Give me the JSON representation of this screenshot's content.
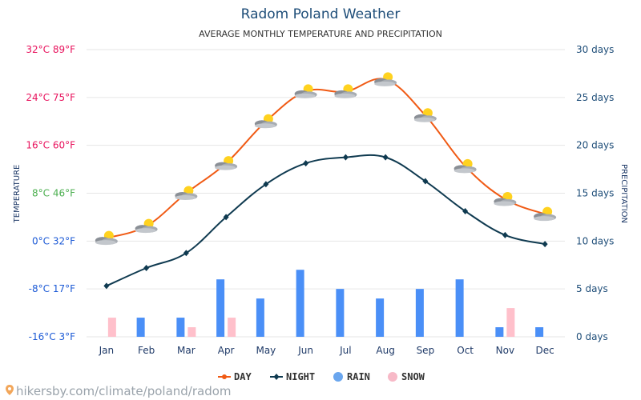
{
  "header": {
    "title": "Radom Poland Weather",
    "subtitle": "AVERAGE MONTHLY TEMPERATURE AND PRECIPITATION"
  },
  "left_axis": {
    "label": "TEMPERATURE",
    "ticks": [
      {
        "label": "32°C 89°F",
        "value": 32,
        "color": "#e8135d"
      },
      {
        "label": "24°C 75°F",
        "value": 24,
        "color": "#e8135d"
      },
      {
        "label": "16°C 60°F",
        "value": 16,
        "color": "#e8135d"
      },
      {
        "label": "8°C 46°F",
        "value": 8,
        "color": "#4caf50"
      },
      {
        "label": "0°C 32°F",
        "value": 0,
        "color": "#1e5bd6"
      },
      {
        "label": "-8°C 17°F",
        "value": -8,
        "color": "#1e5bd6"
      },
      {
        "label": "-16°C 3°F",
        "value": -16,
        "color": "#1e5bd6"
      }
    ]
  },
  "right_axis": {
    "label": "PRECIPITATION",
    "ticks": [
      {
        "label": "30 days",
        "value": 30
      },
      {
        "label": "25 days",
        "value": 25
      },
      {
        "label": "20 days",
        "value": 20
      },
      {
        "label": "15 days",
        "value": 15
      },
      {
        "label": "10 days",
        "value": 10
      },
      {
        "label": "5 days",
        "value": 5
      },
      {
        "label": "0 days",
        "value": 0
      }
    ]
  },
  "legend": [
    {
      "label": "DAY",
      "kind": "line",
      "color": "#f05a14"
    },
    {
      "label": "NIGHT",
      "kind": "line",
      "color": "#0f3a50"
    },
    {
      "label": "RAIN",
      "kind": "dot",
      "color": "#6aa6ee"
    },
    {
      "label": "SNOW",
      "kind": "dot",
      "color": "#f7b9c7"
    }
  ],
  "footer": {
    "source": "hikersby.com/climate/poland/radom"
  },
  "colors": {
    "day": "#f05a14",
    "night": "#0f3a50",
    "rain": "#4a8ff7",
    "snow": "#ffc0cb",
    "grid": "#e6e6e6",
    "right_ticks": "#1f4e79"
  },
  "chart_data": {
    "type": "line",
    "title": "Radom Poland Weather",
    "subtitle": "AVERAGE MONTHLY TEMPERATURE AND PRECIPITATION",
    "categories": [
      "Jan",
      "Feb",
      "Mar",
      "Apr",
      "May",
      "Jun",
      "Jul",
      "Aug",
      "Sep",
      "Oct",
      "Nov",
      "Dec"
    ],
    "series": [
      {
        "name": "DAY",
        "axis": "left",
        "unit": "°C",
        "values": [
          0.5,
          2.5,
          8,
          13,
          20,
          25,
          25,
          27,
          21,
          12.5,
          7,
          4.5
        ]
      },
      {
        "name": "NIGHT",
        "axis": "left",
        "unit": "°C",
        "values": [
          -7.5,
          -4.5,
          -2,
          4,
          9.5,
          13,
          14,
          14,
          10,
          5,
          1,
          -0.5
        ]
      },
      {
        "name": "RAIN",
        "axis": "right",
        "type": "bar",
        "unit": "days",
        "values": [
          0,
          2,
          2,
          6,
          4,
          7,
          5,
          4,
          5,
          6,
          1,
          1
        ]
      },
      {
        "name": "SNOW",
        "axis": "right",
        "type": "bar",
        "unit": "days",
        "values": [
          2,
          0,
          1,
          2,
          0,
          0,
          0,
          0,
          0,
          0,
          3,
          0
        ]
      }
    ],
    "ylabel_left": "TEMPERATURE",
    "ylabel_right": "PRECIPITATION",
    "ylim_left": [
      -16,
      32
    ],
    "ylim_right": [
      0,
      30
    ],
    "legend_position": "bottom-center",
    "grid": true
  }
}
